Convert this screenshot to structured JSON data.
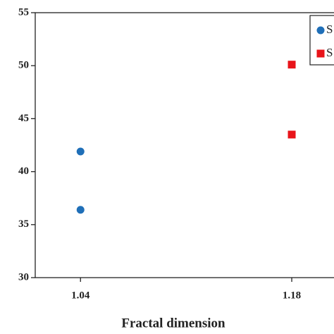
{
  "chart_data": {
    "type": "scatter",
    "xlabel": "Fractal dimension",
    "xlim": [
      1.01,
      1.208
    ],
    "xticks": [
      1.04,
      1.18
    ],
    "ylim": [
      30,
      55
    ],
    "yticks": [
      30,
      35,
      40,
      45,
      50,
      55
    ],
    "legend": "top-right",
    "series": [
      {
        "name": "S",
        "color": "#1f6fb8",
        "marker": "circle",
        "x": [
          1.04,
          1.04
        ],
        "values": [
          41.9,
          36.4
        ]
      },
      {
        "name": "S",
        "color": "#e8141a",
        "marker": "square",
        "x": [
          1.18,
          1.18
        ],
        "values": [
          50.1,
          43.5
        ]
      }
    ]
  }
}
